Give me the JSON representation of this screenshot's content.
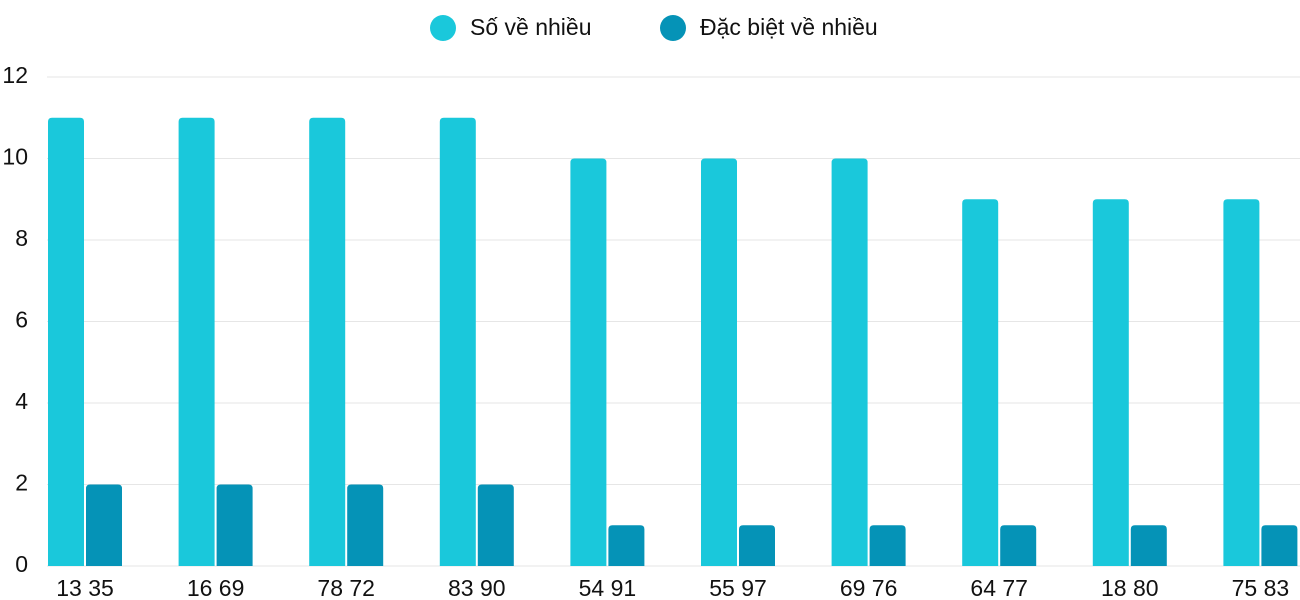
{
  "chart_data": {
    "type": "bar",
    "categories": [
      "13 35",
      "16 69",
      "78 72",
      "83 90",
      "54 91",
      "55 97",
      "69 76",
      "64 77",
      "18 80",
      "75 83"
    ],
    "series": [
      {
        "name": "Số về nhiều",
        "color": "#1ac8db",
        "values": [
          11,
          11,
          11,
          11,
          10,
          10,
          10,
          9,
          9,
          9
        ]
      },
      {
        "name": "Đặc biệt về nhiều",
        "color": "#0593b7",
        "values": [
          2,
          2,
          2,
          2,
          1,
          1,
          1,
          1,
          1,
          1
        ]
      }
    ],
    "ylim": [
      0,
      12
    ],
    "yticks": [
      0,
      2,
      4,
      6,
      8,
      10,
      12
    ],
    "grid": true,
    "legend": "top"
  }
}
